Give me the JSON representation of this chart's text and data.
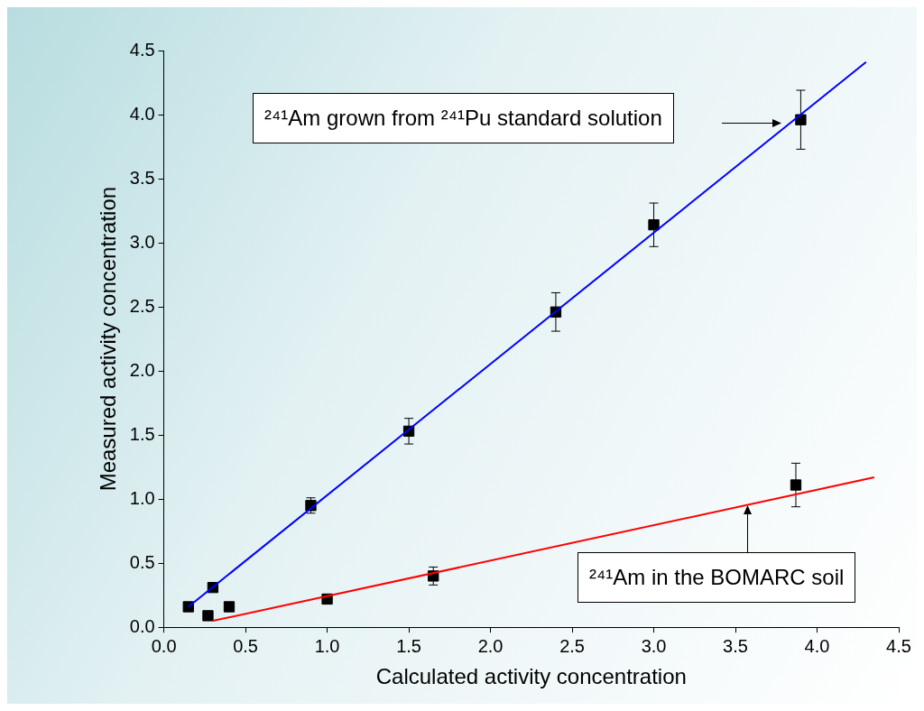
{
  "chart_data": {
    "type": "scatter",
    "xlabel": "Calculated activity concentration",
    "ylabel": "Measured activity concentration",
    "xlim": [
      0,
      4.5
    ],
    "xticks": [
      {
        "value": 0,
        "label": "0.0"
      },
      {
        "value": 0.5,
        "label": "0.5"
      },
      {
        "value": 1,
        "label": "1.0"
      },
      {
        "value": 1.5,
        "label": "1.5"
      },
      {
        "value": 2,
        "label": "2.0"
      },
      {
        "value": 2.5,
        "label": "2.5"
      },
      {
        "value": 3,
        "label": "3.0"
      },
      {
        "value": 3.5,
        "label": "3.5"
      },
      {
        "value": 4,
        "label": "4.0"
      },
      {
        "value": 4.5,
        "label": "4.5"
      }
    ],
    "ylim": [
      0,
      4.5
    ],
    "yticks": [
      {
        "value": 0,
        "label": "0.0"
      },
      {
        "value": 0.5,
        "label": "0.5"
      },
      {
        "value": 1,
        "label": "1.0"
      },
      {
        "value": 1.5,
        "label": "1.5"
      },
      {
        "value": 2,
        "label": "2.0"
      },
      {
        "value": 2.5,
        "label": "2.5"
      },
      {
        "value": 3,
        "label": "3.0"
      },
      {
        "value": 3.5,
        "label": "3.5"
      },
      {
        "value": 4,
        "label": "4.0"
      },
      {
        "value": 4.5,
        "label": "4.5"
      }
    ],
    "grid": false,
    "legend": false,
    "marker": "square",
    "series": [
      {
        "type": "scatter",
        "color": "#000000",
        "x": [
          0.15,
          0.3,
          0.9,
          1.5,
          2.4,
          3.0,
          3.9
        ],
        "values": [
          0.16,
          0.31,
          0.95,
          1.53,
          2.46,
          3.14,
          3.96
        ],
        "errors": [
          null,
          null,
          0.06,
          0.1,
          0.15,
          0.17,
          0.23
        ]
      },
      {
        "type": "scatter",
        "color": "#000000",
        "x": [
          0.27,
          0.4,
          1.0,
          1.65,
          3.87
        ],
        "values": [
          0.09,
          0.16,
          0.22,
          0.4,
          1.11
        ],
        "errors": [
          null,
          null,
          null,
          0.07,
          0.17
        ]
      },
      {
        "type": "line",
        "marker": "none",
        "color": "#0000ff",
        "x": [
          0.15,
          4.3
        ],
        "values": [
          0.16,
          4.41
        ]
      },
      {
        "type": "line",
        "marker": "none",
        "color": "#ff0000",
        "x": [
          0.3,
          4.35
        ],
        "values": [
          0.05,
          1.17
        ]
      }
    ],
    "annotations": [
      "²⁴¹Am grown from ²⁴¹Pu standard solution",
      "²⁴¹Am in the BOMARC soil"
    ]
  }
}
